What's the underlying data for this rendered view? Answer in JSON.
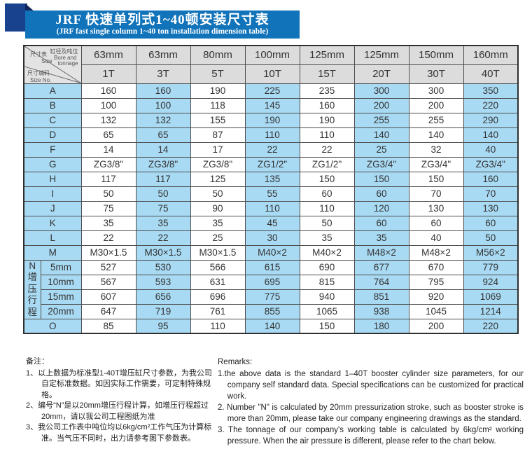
{
  "banner": {
    "title_zh": "JRF 快速单列式1~40顿安装尺寸表",
    "title_en": "(JRF fast single column 1~40 ton installation dimension table)"
  },
  "colors": {
    "banner_blue": "#1173b9",
    "square_navy": "#18418e",
    "fold_navy": "#12265c",
    "header_gray": "#dcdcdc",
    "cell_blue": "#a9daf3"
  },
  "table": {
    "corner": {
      "size_zh": "尺寸表",
      "size_en": "Size",
      "bore_zh": "缸径及吨位",
      "bore_en1": "Bore and",
      "bore_en2": "tonnage",
      "no_zh": "尺寸编码",
      "no_en": "Size No."
    },
    "bore_headers": [
      "63mm",
      "63mm",
      "80mm",
      "100mm",
      "125mm",
      "125mm",
      "150mm",
      "160mm"
    ],
    "tonnage_headers": [
      "1T",
      "3T",
      "5T",
      "10T",
      "15T",
      "20T",
      "30T",
      "40T"
    ],
    "rows": [
      {
        "label": "A",
        "values": [
          "160",
          "160",
          "190",
          "225",
          "235",
          "300",
          "300",
          "350"
        ]
      },
      {
        "label": "B",
        "values": [
          "100",
          "100",
          "118",
          "145",
          "160",
          "200",
          "200",
          "220"
        ]
      },
      {
        "label": "C",
        "values": [
          "132",
          "132",
          "155",
          "190",
          "190",
          "255",
          "255",
          "290"
        ]
      },
      {
        "label": "D",
        "values": [
          "65",
          "65",
          "87",
          "110",
          "110",
          "140",
          "140",
          "140"
        ]
      },
      {
        "label": "F",
        "values": [
          "14",
          "14",
          "17",
          "22",
          "22",
          "25",
          "32",
          "40"
        ]
      },
      {
        "label": "G",
        "values": [
          "ZG3/8\"",
          "ZG3/8\"",
          "ZG3/8\"",
          "ZG1/2\"",
          "ZG1/2\"",
          "ZG3/4\"",
          "ZG3/4\"",
          "ZG3/4\""
        ]
      },
      {
        "label": "H",
        "values": [
          "117",
          "117",
          "125",
          "135",
          "150",
          "150",
          "150",
          "160"
        ]
      },
      {
        "label": "I",
        "values": [
          "50",
          "50",
          "50",
          "55",
          "60",
          "60",
          "70",
          "70"
        ]
      },
      {
        "label": "J",
        "values": [
          "75",
          "75",
          "90",
          "110",
          "110",
          "120",
          "130",
          "130"
        ]
      },
      {
        "label": "K",
        "values": [
          "35",
          "35",
          "35",
          "45",
          "50",
          "60",
          "60",
          "60"
        ]
      },
      {
        "label": "L",
        "values": [
          "22",
          "22",
          "25",
          "30",
          "35",
          "35",
          "40",
          "50"
        ]
      },
      {
        "label": "M",
        "values": [
          "M30×1.5",
          "M30×1.5",
          "M30×1.5",
          "M40×2",
          "M40×2",
          "M48×2",
          "M48×2",
          "M56×2"
        ]
      }
    ],
    "n_block": {
      "label_letter": "N",
      "label_vertical": "增压行程",
      "rows": [
        {
          "label": "5mm",
          "values": [
            "527",
            "530",
            "566",
            "615",
            "690",
            "677",
            "670",
            "779"
          ]
        },
        {
          "label": "10mm",
          "values": [
            "567",
            "593",
            "631",
            "695",
            "815",
            "764",
            "795",
            "924"
          ]
        },
        {
          "label": "15mm",
          "values": [
            "607",
            "656",
            "696",
            "775",
            "940",
            "851",
            "920",
            "1069"
          ]
        },
        {
          "label": "20mm",
          "values": [
            "647",
            "719",
            "761",
            "855",
            "1065",
            "938",
            "1045",
            "1214"
          ]
        }
      ]
    },
    "tail_rows": [
      {
        "label": "O",
        "values": [
          "85",
          "95",
          "110",
          "140",
          "150",
          "180",
          "200",
          "220"
        ]
      }
    ]
  },
  "notes_zh": {
    "heading": "备注：",
    "items": [
      "1、以上数据为标准型1-40T增压缸尺寸参数，为我公司自定标准数据。如因实际工作需要，可定制特殊规格。",
      "2、编号“N”是以20mm增压行程计算，如增压行程超过20mm，请以我公司工程图纸为准",
      "3、我公司工作表中吨位均以6kg/cm²工作气压为计算标准。当气压不同时，出力请参考图下参数表。"
    ]
  },
  "notes_en": {
    "heading": "Remarks:",
    "items": [
      "1.the above data is the standard 1–40T booster cylinder size parameters, for our company self standard data. Special specifications can be customized for practical work.",
      "2. Number \"N\" is calculated by 20mm pressurization stroke, such as booster stroke is more than 20mm, please take our company engineering drawings as the standard.",
      "3. The tonnage of our company's working table is calculated by 6kg/cm² working pressure. When the air pressure is different, please refer to the chart below."
    ]
  }
}
